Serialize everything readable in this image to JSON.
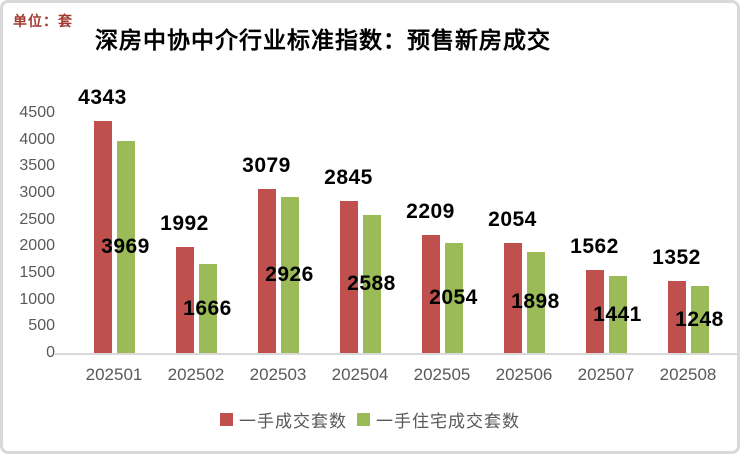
{
  "unit_label": "单位：套",
  "title": "深房中协中介行业标准指数：预售新房成交",
  "colors": {
    "series1": "#C0504D",
    "series2": "#9BBB59",
    "axis_text": "#595959",
    "value_label_text": "#000000",
    "unit_text": "#A23A31",
    "baseline": "#D9D9D9",
    "frame_border": "#D9D9D9"
  },
  "chart_data": {
    "type": "bar",
    "title": "深房中协中介行业标准指数：预售新房成交",
    "unit": "单位：套",
    "categories": [
      "202501",
      "202502",
      "202503",
      "202504",
      "202505",
      "202506",
      "202507",
      "202508"
    ],
    "series": [
      {
        "name": "一手成交套数",
        "color": "#C0504D",
        "values": [
          4343,
          1992,
          3079,
          2845,
          2209,
          2054,
          1562,
          1352
        ],
        "label_position": "above-bar"
      },
      {
        "name": "一手住宅成交套数",
        "color": "#9BBB59",
        "values": [
          3969,
          1666,
          2926,
          2588,
          2054,
          1898,
          1441,
          1248
        ],
        "label_position": "center-of-bar"
      }
    ],
    "ylim": [
      0,
      4500
    ],
    "ytick_step": 500,
    "yticks": [
      4500,
      4000,
      3500,
      3000,
      2500,
      2000,
      1500,
      1000,
      500,
      0
    ],
    "grid": false,
    "legend_position": "bottom",
    "data_labels": true
  }
}
